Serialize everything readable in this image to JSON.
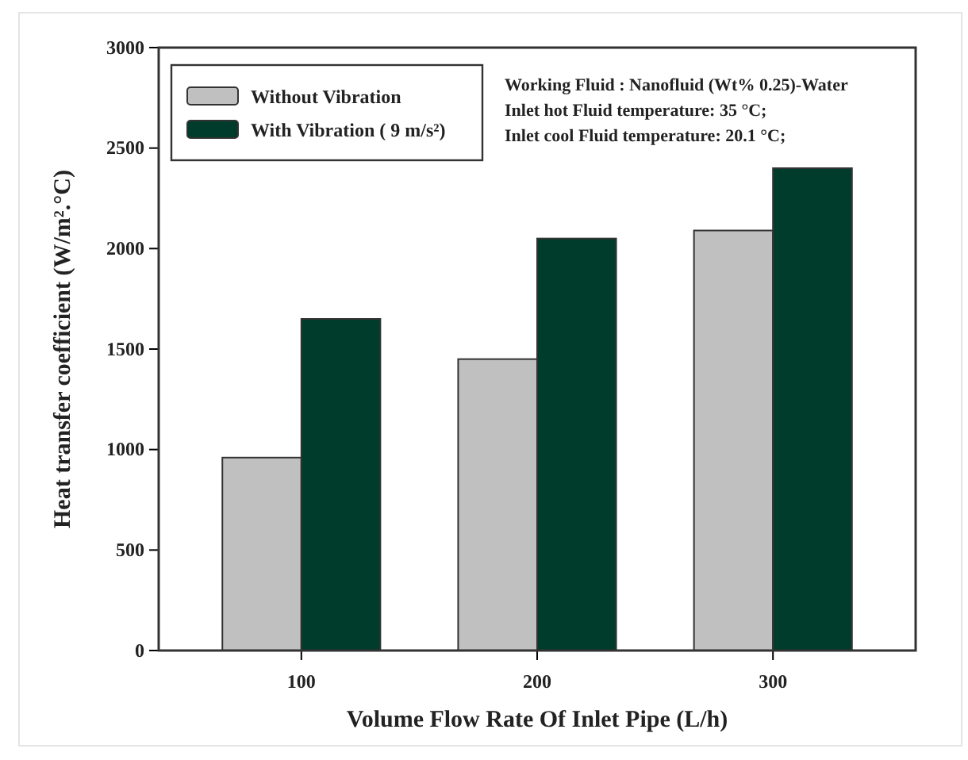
{
  "chart_data": {
    "type": "bar",
    "xlabel": "Volume Flow Rate Of Inlet Pipe (L/h)",
    "ylabel": "Heat transfer coefficient (W/m².°C)",
    "categories": [
      "100",
      "200",
      "300"
    ],
    "series": [
      {
        "name": "Without Vibration",
        "color": "#c0c0c0",
        "values": [
          960,
          1450,
          2090
        ]
      },
      {
        "name": "With Vibration ( 9 m/s²)",
        "color": "#003c2c",
        "values": [
          1650,
          2050,
          2400
        ]
      }
    ],
    "ylim": [
      0,
      3000
    ],
    "yticks": [
      0,
      500,
      1000,
      1500,
      2000,
      2500,
      3000
    ],
    "grid": false,
    "legend": "top left",
    "annotations": [
      "Working Fluid : Nanofluid (Wt% 0.25)-Water",
      "Inlet hot Fluid temperature: 35 °C;",
      "Inlet cool Fluid temperature: 20.1 °C;"
    ]
  }
}
